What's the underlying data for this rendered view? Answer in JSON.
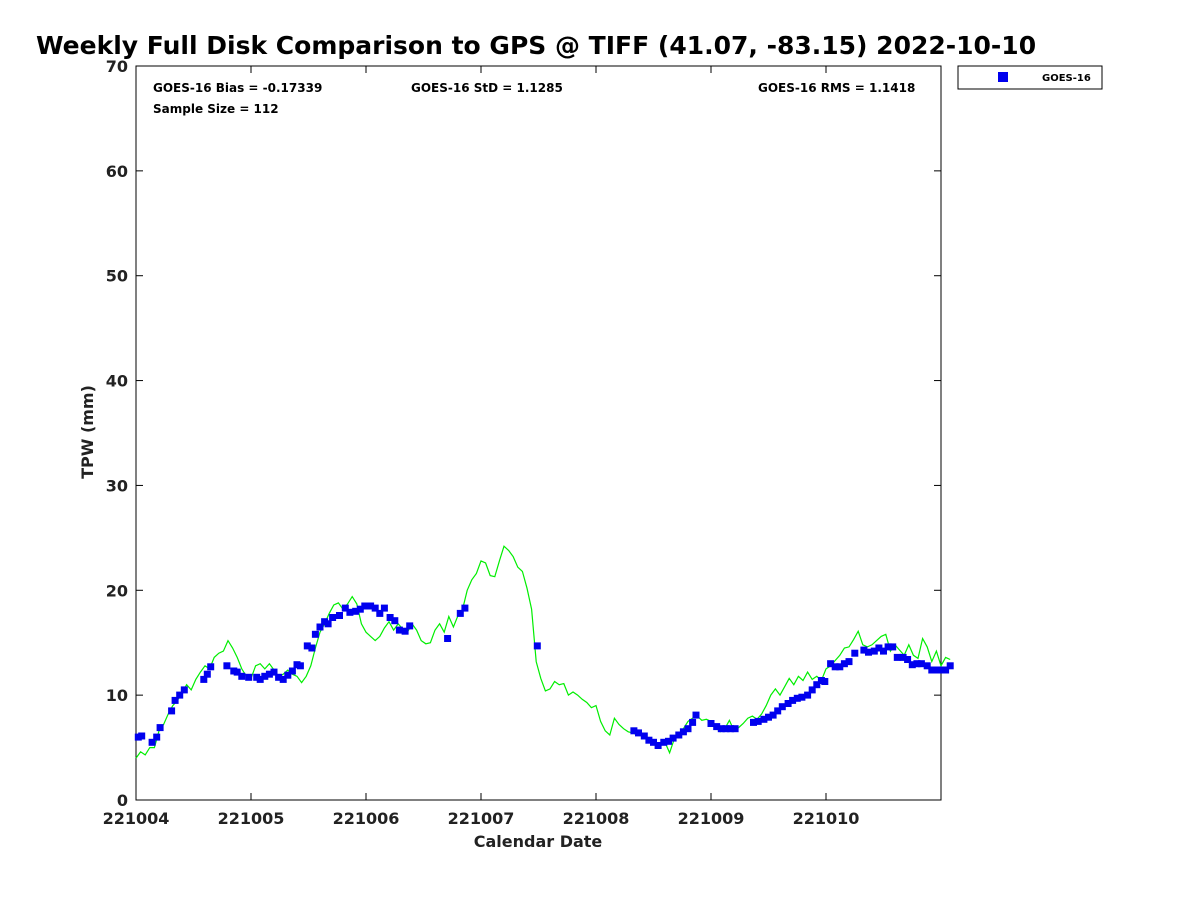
{
  "chart_data": {
    "type": "scatter",
    "title": "Weekly Full Disk Comparison to GPS @ TIFF (41.07, -83.15) 2022-10-10",
    "xlabel": "Calendar Date",
    "ylabel": "TPW (mm)",
    "xlim": [
      221004,
      221011
    ],
    "ylim": [
      0,
      70
    ],
    "x_ticks": [
      "221004",
      "221005",
      "221006",
      "221007",
      "221008",
      "221009",
      "221010"
    ],
    "y_ticks": [
      "0",
      "10",
      "20",
      "30",
      "40",
      "50",
      "60",
      "70"
    ],
    "grid": false,
    "legend_position": "top-right, outside plot",
    "stats": {
      "bias": "GOES-16 Bias = -0.17339",
      "std": "GOES-16 StD = 1.1285",
      "rms": "GOES-16 RMS = 1.1418",
      "sample_size": "Sample Size = 112"
    },
    "series": [
      {
        "name": "GOES-16",
        "marker": "square",
        "color": "#0000ee",
        "points": [
          [
            221004.02,
            6.0
          ],
          [
            221004.05,
            6.1
          ],
          [
            221004.14,
            5.5
          ],
          [
            221004.18,
            6.0
          ],
          [
            221004.21,
            6.9
          ],
          [
            221004.31,
            8.5
          ],
          [
            221004.34,
            9.5
          ],
          [
            221004.38,
            10.0
          ],
          [
            221004.42,
            10.5
          ],
          [
            221004.59,
            11.5
          ],
          [
            221004.62,
            12.0
          ],
          [
            221004.65,
            12.7
          ],
          [
            221004.79,
            12.8
          ],
          [
            221004.85,
            12.3
          ],
          [
            221004.88,
            12.2
          ],
          [
            221004.92,
            11.8
          ],
          [
            221004.98,
            11.7
          ],
          [
            221005.05,
            11.7
          ],
          [
            221005.08,
            11.5
          ],
          [
            221005.12,
            11.8
          ],
          [
            221005.16,
            12.0
          ],
          [
            221005.2,
            12.2
          ],
          [
            221005.24,
            11.7
          ],
          [
            221005.28,
            11.5
          ],
          [
            221005.32,
            11.9
          ],
          [
            221005.36,
            12.3
          ],
          [
            221005.4,
            12.9
          ],
          [
            221005.43,
            12.8
          ],
          [
            221005.49,
            14.7
          ],
          [
            221005.53,
            14.5
          ],
          [
            221005.56,
            15.8
          ],
          [
            221005.6,
            16.5
          ],
          [
            221005.64,
            17.0
          ],
          [
            221005.67,
            16.8
          ],
          [
            221005.71,
            17.4
          ],
          [
            221005.77,
            17.6
          ],
          [
            221005.82,
            18.3
          ],
          [
            221005.86,
            17.9
          ],
          [
            221005.91,
            18.0
          ],
          [
            221005.95,
            18.2
          ],
          [
            221005.99,
            18.5
          ],
          [
            221006.04,
            18.5
          ],
          [
            221006.08,
            18.3
          ],
          [
            221006.12,
            17.8
          ],
          [
            221006.16,
            18.3
          ],
          [
            221006.21,
            17.4
          ],
          [
            221006.25,
            17.1
          ],
          [
            221006.29,
            16.2
          ],
          [
            221006.34,
            16.1
          ],
          [
            221006.38,
            16.6
          ],
          [
            221006.71,
            15.4
          ],
          [
            221006.82,
            17.8
          ],
          [
            221006.86,
            18.3
          ],
          [
            221007.49,
            14.7
          ],
          [
            221008.33,
            6.6
          ],
          [
            221008.37,
            6.4
          ],
          [
            221008.42,
            6.1
          ],
          [
            221008.46,
            5.7
          ],
          [
            221008.5,
            5.5
          ],
          [
            221008.54,
            5.2
          ],
          [
            221008.59,
            5.5
          ],
          [
            221008.63,
            5.6
          ],
          [
            221008.67,
            5.9
          ],
          [
            221008.72,
            6.2
          ],
          [
            221008.76,
            6.5
          ],
          [
            221008.8,
            6.8
          ],
          [
            221008.84,
            7.4
          ],
          [
            221008.87,
            8.1
          ],
          [
            221009.0,
            7.3
          ],
          [
            221009.05,
            7.0
          ],
          [
            221009.09,
            6.8
          ],
          [
            221009.13,
            6.8
          ],
          [
            221009.17,
            6.8
          ],
          [
            221009.21,
            6.8
          ],
          [
            221009.37,
            7.4
          ],
          [
            221009.41,
            7.5
          ],
          [
            221009.46,
            7.7
          ],
          [
            221009.5,
            7.9
          ],
          [
            221009.54,
            8.1
          ],
          [
            221009.58,
            8.5
          ],
          [
            221009.62,
            8.9
          ],
          [
            221009.67,
            9.2
          ],
          [
            221009.71,
            9.5
          ],
          [
            221009.75,
            9.7
          ],
          [
            221009.79,
            9.8
          ],
          [
            221009.84,
            10.0
          ],
          [
            221009.88,
            10.5
          ],
          [
            221009.92,
            11.0
          ],
          [
            221009.96,
            11.4
          ],
          [
            221009.99,
            11.3
          ],
          [
            221010.04,
            13.0
          ],
          [
            221010.08,
            12.7
          ],
          [
            221010.12,
            12.7
          ],
          [
            221010.16,
            13.0
          ],
          [
            221010.2,
            13.2
          ],
          [
            221010.25,
            14.0
          ],
          [
            221010.33,
            14.3
          ],
          [
            221010.37,
            14.1
          ],
          [
            221010.42,
            14.2
          ],
          [
            221010.46,
            14.5
          ],
          [
            221010.5,
            14.2
          ],
          [
            221010.54,
            14.6
          ],
          [
            221010.58,
            14.6
          ],
          [
            221010.62,
            13.6
          ],
          [
            221010.67,
            13.6
          ],
          [
            221010.71,
            13.4
          ],
          [
            221010.75,
            12.9
          ],
          [
            221010.79,
            13.0
          ],
          [
            221010.83,
            13.0
          ],
          [
            221010.88,
            12.8
          ],
          [
            221010.92,
            12.4
          ],
          [
            221010.96,
            12.4
          ],
          [
            221011.0,
            12.4
          ],
          [
            221011.04,
            12.4
          ],
          [
            221011.08,
            12.8
          ]
        ]
      },
      {
        "color": "#00ee00",
        "line": true,
        "points": [
          [
            221004.0,
            4.0
          ],
          [
            221004.04,
            4.6
          ],
          [
            221004.08,
            4.3
          ],
          [
            221004.12,
            5.0
          ],
          [
            221004.16,
            5.0
          ],
          [
            221004.2,
            6.6
          ],
          [
            221004.24,
            7.2
          ],
          [
            221004.28,
            8.2
          ],
          [
            221004.32,
            9.0
          ],
          [
            221004.36,
            9.5
          ],
          [
            221004.4,
            10.2
          ],
          [
            221004.44,
            11.0
          ],
          [
            221004.48,
            10.5
          ],
          [
            221004.52,
            11.5
          ],
          [
            221004.56,
            12.2
          ],
          [
            221004.6,
            12.8
          ],
          [
            221004.64,
            12.5
          ],
          [
            221004.68,
            13.6
          ],
          [
            221004.72,
            14.0
          ],
          [
            221004.76,
            14.2
          ],
          [
            221004.8,
            15.2
          ],
          [
            221004.84,
            14.5
          ],
          [
            221004.88,
            13.6
          ],
          [
            221004.92,
            12.5
          ],
          [
            221004.96,
            11.8
          ],
          [
            221005.0,
            11.6
          ],
          [
            221005.04,
            12.8
          ],
          [
            221005.08,
            13.0
          ],
          [
            221005.12,
            12.5
          ],
          [
            221005.16,
            13.0
          ],
          [
            221005.2,
            12.4
          ],
          [
            221005.24,
            11.8
          ],
          [
            221005.28,
            12.0
          ],
          [
            221005.32,
            12.4
          ],
          [
            221005.36,
            12.0
          ],
          [
            221005.4,
            11.8
          ],
          [
            221005.44,
            11.2
          ],
          [
            221005.48,
            11.8
          ],
          [
            221005.52,
            12.8
          ],
          [
            221005.56,
            14.5
          ],
          [
            221005.6,
            16.0
          ],
          [
            221005.64,
            16.8
          ],
          [
            221005.68,
            17.8
          ],
          [
            221005.72,
            18.6
          ],
          [
            221005.76,
            18.8
          ],
          [
            221005.8,
            18.2
          ],
          [
            221005.84,
            18.7
          ],
          [
            221005.88,
            19.4
          ],
          [
            221005.92,
            18.7
          ],
          [
            221005.96,
            16.8
          ],
          [
            221006.0,
            16.0
          ],
          [
            221006.04,
            15.6
          ],
          [
            221006.08,
            15.2
          ],
          [
            221006.12,
            15.6
          ],
          [
            221006.16,
            16.4
          ],
          [
            221006.2,
            17.0
          ],
          [
            221006.24,
            16.2
          ],
          [
            221006.28,
            16.8
          ],
          [
            221006.32,
            16.3
          ],
          [
            221006.36,
            16.0
          ],
          [
            221006.4,
            16.8
          ],
          [
            221006.44,
            16.2
          ],
          [
            221006.48,
            15.2
          ],
          [
            221006.52,
            14.9
          ],
          [
            221006.56,
            15.0
          ],
          [
            221006.6,
            16.2
          ],
          [
            221006.64,
            16.8
          ],
          [
            221006.68,
            16.0
          ],
          [
            221006.72,
            17.5
          ],
          [
            221006.76,
            16.5
          ],
          [
            221006.8,
            17.6
          ],
          [
            221006.84,
            18.2
          ],
          [
            221006.88,
            20.0
          ],
          [
            221006.92,
            21.0
          ],
          [
            221006.96,
            21.6
          ],
          [
            221007.0,
            22.8
          ],
          [
            221007.04,
            22.6
          ],
          [
            221007.08,
            21.4
          ],
          [
            221007.12,
            21.3
          ],
          [
            221007.16,
            22.8
          ],
          [
            221007.2,
            24.2
          ],
          [
            221007.24,
            23.8
          ],
          [
            221007.28,
            23.2
          ],
          [
            221007.32,
            22.2
          ],
          [
            221007.36,
            21.8
          ],
          [
            221007.4,
            20.2
          ],
          [
            221007.44,
            18.2
          ],
          [
            221007.48,
            13.2
          ],
          [
            221007.52,
            11.6
          ],
          [
            221007.56,
            10.4
          ],
          [
            221007.6,
            10.6
          ],
          [
            221007.64,
            11.3
          ],
          [
            221007.68,
            11.0
          ],
          [
            221007.72,
            11.1
          ],
          [
            221007.76,
            10.0
          ],
          [
            221007.8,
            10.3
          ],
          [
            221007.84,
            10.0
          ],
          [
            221007.88,
            9.6
          ],
          [
            221007.92,
            9.3
          ],
          [
            221007.96,
            8.8
          ],
          [
            221008.0,
            9.0
          ],
          [
            221008.04,
            7.5
          ],
          [
            221008.08,
            6.6
          ],
          [
            221008.12,
            6.2
          ],
          [
            221008.16,
            7.8
          ],
          [
            221008.2,
            7.2
          ],
          [
            221008.24,
            6.8
          ],
          [
            221008.28,
            6.5
          ],
          [
            221008.32,
            6.4
          ],
          [
            221008.36,
            6.2
          ],
          [
            221008.4,
            6.3
          ],
          [
            221008.44,
            6.0
          ],
          [
            221008.48,
            5.8
          ],
          [
            221008.52,
            5.4
          ],
          [
            221008.56,
            5.3
          ],
          [
            221008.6,
            5.5
          ],
          [
            221008.64,
            4.5
          ],
          [
            221008.68,
            5.8
          ],
          [
            221008.72,
            6.3
          ],
          [
            221008.76,
            6.8
          ],
          [
            221008.8,
            7.5
          ],
          [
            221008.84,
            7.8
          ],
          [
            221008.88,
            8.0
          ],
          [
            221008.92,
            7.6
          ],
          [
            221008.96,
            7.7
          ],
          [
            221009.0,
            7.5
          ],
          [
            221009.04,
            6.9
          ],
          [
            221009.08,
            6.5
          ],
          [
            221009.12,
            6.8
          ],
          [
            221009.16,
            7.6
          ],
          [
            221009.2,
            6.6
          ],
          [
            221009.24,
            6.9
          ],
          [
            221009.28,
            7.3
          ],
          [
            221009.32,
            7.8
          ],
          [
            221009.36,
            8.0
          ],
          [
            221009.4,
            7.7
          ],
          [
            221009.44,
            8.2
          ],
          [
            221009.48,
            9.0
          ],
          [
            221009.52,
            10.0
          ],
          [
            221009.56,
            10.6
          ],
          [
            221009.6,
            10.0
          ],
          [
            221009.64,
            10.8
          ],
          [
            221009.68,
            11.6
          ],
          [
            221009.72,
            11.0
          ],
          [
            221009.76,
            11.8
          ],
          [
            221009.8,
            11.4
          ],
          [
            221009.84,
            12.2
          ],
          [
            221009.88,
            11.5
          ],
          [
            221009.92,
            11.8
          ],
          [
            221009.96,
            11.4
          ],
          [
            221010.0,
            12.5
          ],
          [
            221010.04,
            12.8
          ],
          [
            221010.08,
            13.3
          ],
          [
            221010.12,
            13.8
          ],
          [
            221010.16,
            14.5
          ],
          [
            221010.2,
            14.6
          ],
          [
            221010.24,
            15.3
          ],
          [
            221010.28,
            16.1
          ],
          [
            221010.32,
            14.8
          ],
          [
            221010.36,
            14.6
          ],
          [
            221010.4,
            14.8
          ],
          [
            221010.44,
            15.2
          ],
          [
            221010.48,
            15.6
          ],
          [
            221010.52,
            15.8
          ],
          [
            221010.56,
            14.2
          ],
          [
            221010.6,
            14.8
          ],
          [
            221010.64,
            14.3
          ],
          [
            221010.68,
            13.8
          ],
          [
            221010.72,
            14.8
          ],
          [
            221010.76,
            13.8
          ],
          [
            221010.8,
            13.5
          ],
          [
            221010.84,
            15.4
          ],
          [
            221010.88,
            14.6
          ],
          [
            221010.92,
            13.2
          ],
          [
            221010.96,
            14.2
          ],
          [
            221011.0,
            12.8
          ],
          [
            221011.04,
            13.6
          ],
          [
            221011.08,
            13.4
          ]
        ]
      }
    ]
  }
}
